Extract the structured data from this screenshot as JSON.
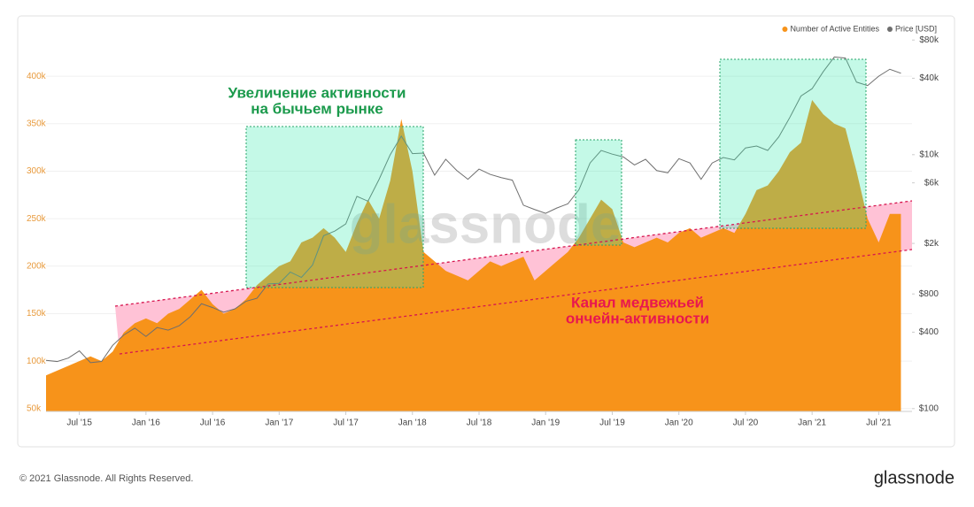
{
  "chart_data": {
    "type": "area",
    "x": [
      "2015-04",
      "2015-05",
      "2015-06",
      "2015-07",
      "2015-08",
      "2015-09",
      "2015-10",
      "2015-11",
      "2015-12",
      "2016-01",
      "2016-02",
      "2016-03",
      "2016-04",
      "2016-05",
      "2016-06",
      "2016-07",
      "2016-08",
      "2016-09",
      "2016-10",
      "2016-11",
      "2016-12",
      "2017-01",
      "2017-02",
      "2017-03",
      "2017-04",
      "2017-05",
      "2017-06",
      "2017-07",
      "2017-08",
      "2017-09",
      "2017-10",
      "2017-11",
      "2017-12",
      "2018-01",
      "2018-02",
      "2018-03",
      "2018-04",
      "2018-05",
      "2018-06",
      "2018-07",
      "2018-08",
      "2018-09",
      "2018-10",
      "2018-11",
      "2018-12",
      "2019-01",
      "2019-02",
      "2019-03",
      "2019-04",
      "2019-05",
      "2019-06",
      "2019-07",
      "2019-08",
      "2019-09",
      "2019-10",
      "2019-11",
      "2019-12",
      "2020-01",
      "2020-02",
      "2020-03",
      "2020-04",
      "2020-05",
      "2020-06",
      "2020-07",
      "2020-08",
      "2020-09",
      "2020-10",
      "2020-11",
      "2020-12",
      "2021-01",
      "2021-02",
      "2021-03",
      "2021-04",
      "2021-05",
      "2021-06",
      "2021-07",
      "2021-08",
      "2021-09"
    ],
    "series": [
      {
        "name": "Number of Active Entities",
        "color": "#f7931a",
        "type": "area",
        "axis": "y",
        "values": [
          85000,
          90000,
          95000,
          100000,
          105000,
          100000,
          110000,
          130000,
          140000,
          145000,
          140000,
          150000,
          155000,
          165000,
          175000,
          160000,
          150000,
          155000,
          165000,
          180000,
          190000,
          200000,
          205000,
          225000,
          230000,
          240000,
          230000,
          215000,
          245000,
          270000,
          250000,
          290000,
          355000,
          300000,
          215000,
          205000,
          195000,
          190000,
          185000,
          195000,
          205000,
          200000,
          205000,
          210000,
          185000,
          195000,
          205000,
          215000,
          230000,
          250000,
          270000,
          260000,
          225000,
          220000,
          225000,
          230000,
          225000,
          235000,
          240000,
          230000,
          235000,
          240000,
          235000,
          255000,
          280000,
          285000,
          300000,
          320000,
          330000,
          375000,
          360000,
          350000,
          345000,
          300000,
          250000,
          225000,
          255000,
          255000
        ]
      },
      {
        "name": "Price [USD]",
        "color": "#6e6e6e",
        "type": "line",
        "axis": "y2",
        "values": [
          240,
          235,
          250,
          285,
          230,
          235,
          315,
          380,
          430,
          370,
          435,
          415,
          450,
          530,
          670,
          625,
          575,
          610,
          700,
          740,
          960,
          970,
          1190,
          1080,
          1350,
          2300,
          2500,
          2850,
          4700,
          4300,
          6400,
          10000,
          14000,
          10200,
          10300,
          6900,
          9200,
          7500,
          6400,
          7700,
          7000,
          6600,
          6300,
          4000,
          3700,
          3450,
          3800,
          4100,
          5300,
          8600,
          10800,
          10100,
          9600,
          8300,
          9200,
          7500,
          7200,
          9300,
          8600,
          6400,
          8600,
          9500,
          9100,
          11300,
          11700,
          10800,
          13800,
          19700,
          29000,
          33100,
          45000,
          58800,
          57700,
          37300,
          35000,
          41500,
          47100,
          43800
        ]
      }
    ],
    "xlim": [
      "2015-04",
      "2021-10"
    ],
    "xticks": [
      {
        "value": "2015-07",
        "label": "Jul '15"
      },
      {
        "value": "2016-01",
        "label": "Jan '16"
      },
      {
        "value": "2016-07",
        "label": "Jul '16"
      },
      {
        "value": "2017-01",
        "label": "Jan '17"
      },
      {
        "value": "2017-07",
        "label": "Jul '17"
      },
      {
        "value": "2018-01",
        "label": "Jan '18"
      },
      {
        "value": "2018-07",
        "label": "Jul '18"
      },
      {
        "value": "2019-01",
        "label": "Jan '19"
      },
      {
        "value": "2019-07",
        "label": "Jul '19"
      },
      {
        "value": "2020-01",
        "label": "Jan '20"
      },
      {
        "value": "2020-07",
        "label": "Jul '20"
      },
      {
        "value": "2021-01",
        "label": "Jan '21"
      },
      {
        "value": "2021-07",
        "label": "Jul '21"
      }
    ],
    "ylim": [
      47000,
      443000
    ],
    "yticks": [
      {
        "value": 50000,
        "label": "50k"
      },
      {
        "value": 100000,
        "label": "100k"
      },
      {
        "value": 150000,
        "label": "150k"
      },
      {
        "value": 200000,
        "label": "200k"
      },
      {
        "value": 250000,
        "label": "250k"
      },
      {
        "value": 300000,
        "label": "300k"
      },
      {
        "value": 350000,
        "label": "350k"
      },
      {
        "value": 400000,
        "label": "400k"
      }
    ],
    "y2lim": [
      95,
      87000
    ],
    "y2scale": "log",
    "y2ticks": [
      {
        "value": 100,
        "label": "$100"
      },
      {
        "value": 400,
        "label": "$400"
      },
      {
        "value": 800,
        "label": "$800"
      },
      {
        "value": 2000,
        "label": "$2k"
      },
      {
        "value": 6000,
        "label": "$6k"
      },
      {
        "value": 10000,
        "label": "$10k"
      },
      {
        "value": 40000,
        "label": "$40k"
      },
      {
        "value": 80000,
        "label": "$80k"
      }
    ],
    "grid": true,
    "legend": "top-right",
    "watermark": "glassnode",
    "annotations": [
      {
        "lines": [
          "Увеличение активности",
          "на бычьем рынке"
        ]
      },
      {
        "lines": [
          "Канал медвежьей",
          "ончейн-активности"
        ]
      }
    ]
  },
  "footer": {
    "copyright": "© 2021 Glassnode. All Rights Reserved.",
    "logo": "glassnode"
  }
}
